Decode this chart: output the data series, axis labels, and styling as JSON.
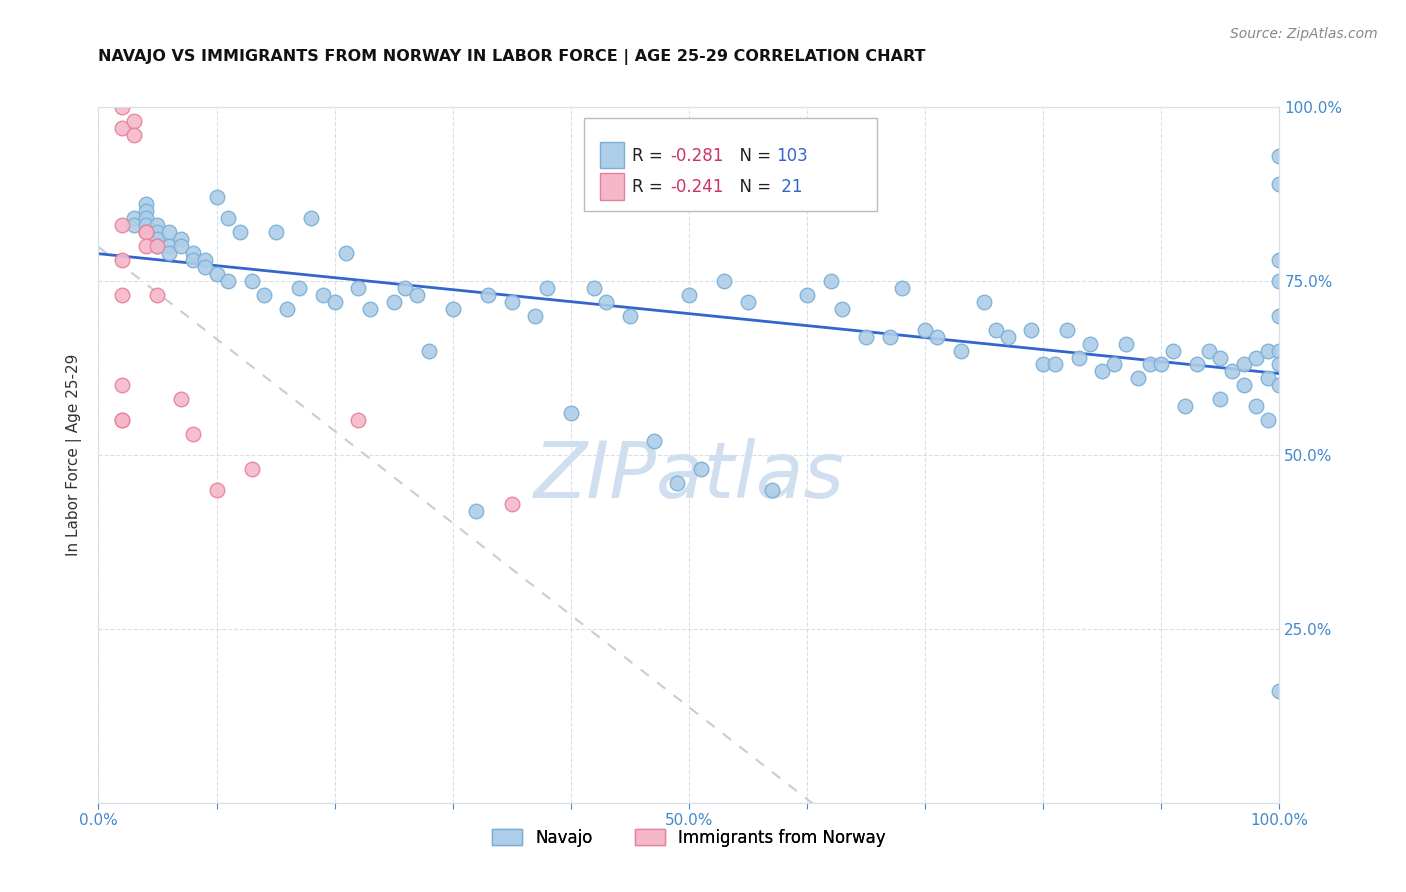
{
  "title": "NAVAJO VS IMMIGRANTS FROM NORWAY IN LABOR FORCE | AGE 25-29 CORRELATION CHART",
  "source": "Source: ZipAtlas.com",
  "ylabel": "In Labor Force | Age 25-29",
  "xlim": [
    0.0,
    1.0
  ],
  "ylim": [
    0.0,
    1.0
  ],
  "xticks": [
    0.0,
    0.1,
    0.2,
    0.3,
    0.4,
    0.5,
    0.6,
    0.7,
    0.8,
    0.9,
    1.0
  ],
  "yticks": [
    0.0,
    0.25,
    0.5,
    0.75,
    1.0
  ],
  "xticklabels": [
    "0.0%",
    "",
    "",
    "",
    "",
    "50.0%",
    "",
    "",
    "",
    "",
    "100.0%"
  ],
  "yticklabels": [
    "",
    "25.0%",
    "50.0%",
    "75.0%",
    "100.0%"
  ],
  "navajo_R": -0.281,
  "navajo_N": 103,
  "norway_R": -0.241,
  "norway_N": 21,
  "navajo_color": "#aecde8",
  "navajo_edge": "#7aafd4",
  "norway_color": "#f4b8ca",
  "norway_edge": "#e8809a",
  "trend_navajo_color": "#3366cc",
  "trend_norway_color": "#cccccc",
  "watermark_color": "#d0dff0",
  "axis_color": "#4488cc",
  "grid_color": "#d8dfe8",
  "navajo_x": [
    0.03,
    0.03,
    0.04,
    0.04,
    0.04,
    0.04,
    0.05,
    0.05,
    0.05,
    0.05,
    0.06,
    0.06,
    0.06,
    0.07,
    0.07,
    0.08,
    0.08,
    0.09,
    0.09,
    0.1,
    0.1,
    0.11,
    0.11,
    0.12,
    0.13,
    0.14,
    0.15,
    0.16,
    0.17,
    0.18,
    0.19,
    0.2,
    0.21,
    0.22,
    0.23,
    0.25,
    0.26,
    0.27,
    0.28,
    0.3,
    0.32,
    0.33,
    0.35,
    0.37,
    0.38,
    0.4,
    0.42,
    0.43,
    0.45,
    0.47,
    0.49,
    0.5,
    0.51,
    0.53,
    0.55,
    0.57,
    0.6,
    0.62,
    0.63,
    0.65,
    0.67,
    0.68,
    0.7,
    0.71,
    0.73,
    0.75,
    0.76,
    0.77,
    0.79,
    0.8,
    0.81,
    0.82,
    0.83,
    0.84,
    0.85,
    0.86,
    0.87,
    0.88,
    0.89,
    0.9,
    0.91,
    0.92,
    0.93,
    0.94,
    0.95,
    0.95,
    0.96,
    0.97,
    0.97,
    0.98,
    0.98,
    0.99,
    0.99,
    0.99,
    1.0,
    1.0,
    1.0,
    1.0,
    1.0,
    1.0,
    1.0,
    1.0,
    1.0
  ],
  "navajo_y": [
    0.84,
    0.83,
    0.86,
    0.85,
    0.84,
    0.83,
    0.83,
    0.82,
    0.81,
    0.8,
    0.82,
    0.8,
    0.79,
    0.81,
    0.8,
    0.79,
    0.78,
    0.78,
    0.77,
    0.87,
    0.76,
    0.84,
    0.75,
    0.82,
    0.75,
    0.73,
    0.82,
    0.71,
    0.74,
    0.84,
    0.73,
    0.72,
    0.79,
    0.74,
    0.71,
    0.72,
    0.74,
    0.73,
    0.65,
    0.71,
    0.42,
    0.73,
    0.72,
    0.7,
    0.74,
    0.56,
    0.74,
    0.72,
    0.7,
    0.52,
    0.46,
    0.73,
    0.48,
    0.75,
    0.72,
    0.45,
    0.73,
    0.75,
    0.71,
    0.67,
    0.67,
    0.74,
    0.68,
    0.67,
    0.65,
    0.72,
    0.68,
    0.67,
    0.68,
    0.63,
    0.63,
    0.68,
    0.64,
    0.66,
    0.62,
    0.63,
    0.66,
    0.61,
    0.63,
    0.63,
    0.65,
    0.57,
    0.63,
    0.65,
    0.58,
    0.64,
    0.62,
    0.6,
    0.63,
    0.57,
    0.64,
    0.61,
    0.65,
    0.55,
    0.93,
    0.89,
    0.78,
    0.75,
    0.7,
    0.65,
    0.63,
    0.6,
    0.16
  ],
  "norway_x": [
    0.02,
    0.02,
    0.02,
    0.02,
    0.02,
    0.02,
    0.02,
    0.02,
    0.03,
    0.03,
    0.04,
    0.04,
    0.04,
    0.05,
    0.05,
    0.07,
    0.08,
    0.1,
    0.13,
    0.22,
    0.35
  ],
  "norway_y": [
    1.0,
    0.97,
    0.83,
    0.78,
    0.73,
    0.6,
    0.55,
    0.55,
    0.98,
    0.96,
    0.82,
    0.82,
    0.8,
    0.8,
    0.73,
    0.58,
    0.53,
    0.45,
    0.48,
    0.55,
    0.43
  ]
}
